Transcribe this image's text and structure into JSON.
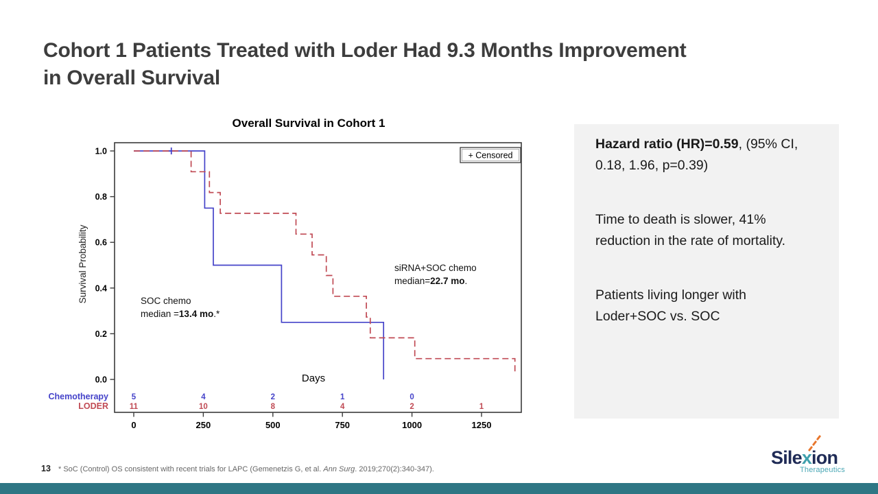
{
  "slide": {
    "title_lines": [
      "Cohort 1 Patients Treated with Loder Had 9.3 Months Improvement",
      "in Overall Survival"
    ],
    "page_number": "13",
    "footnote": {
      "pre": "* SoC (Control) OS consistent with recent trials for LAPC (Gemenetzis G, et al. ",
      "italic": "Ann Surg",
      "post": ". 2019;270(2):340-347)."
    },
    "logo": {
      "brand_pre": "Sile",
      "brand_x": "x",
      "brand_post": "ion",
      "sub": "Therapeutics"
    },
    "accent_teal": "#2e7684"
  },
  "panel": {
    "p1_bold": "Hazard ratio (HR)=0.59",
    "p1_rest": ", (95% CI, 0.18, 1.96, p=0.39)",
    "p2": "Time to death is slower, 41% reduction in the rate of mortality.",
    "p3": "Patients living longer with Loder+SOC vs. SOC"
  },
  "chart_data": {
    "type": "line",
    "subtype": "kaplan-meier-step",
    "title": "Overall Survival in Cohort 1",
    "xlabel": "Days",
    "ylabel": "Survival Probability",
    "xlim": [
      0,
      1400
    ],
    "ylim": [
      0,
      1.0
    ],
    "xticks": [
      0,
      250,
      500,
      750,
      1000,
      1250
    ],
    "yticks": [
      0.0,
      0.2,
      0.4,
      0.6,
      0.8,
      1.0
    ],
    "grid": false,
    "legend": {
      "label": "+ Censored",
      "position": "top-right"
    },
    "series": [
      {
        "name": "Chemotherapy",
        "display_label": "SOC chemo",
        "median_prefix": "median =",
        "median_bold": "13.4 mo",
        "median_suffix": ".*",
        "color": "#4543c9",
        "line_style": "solid",
        "steps": [
          [
            0,
            1.0
          ],
          [
            255,
            1.0
          ],
          [
            255,
            0.75
          ],
          [
            286,
            0.75
          ],
          [
            286,
            0.5
          ],
          [
            531,
            0.5
          ],
          [
            531,
            0.25
          ],
          [
            898,
            0.25
          ],
          [
            898,
            0.0
          ]
        ],
        "censored_points": [
          [
            135,
            1.0
          ]
        ],
        "at_risk": [
          5,
          4,
          2,
          1,
          0
        ]
      },
      {
        "name": "LODER",
        "display_label": "siRNA+SOC chemo",
        "median_prefix": "median=",
        "median_bold": "22.7 mo",
        "median_suffix": ".",
        "color": "#c04a54",
        "line_style": "dashed",
        "steps": [
          [
            0,
            1.0
          ],
          [
            206,
            1.0
          ],
          [
            206,
            0.909
          ],
          [
            272,
            0.909
          ],
          [
            272,
            0.818
          ],
          [
            311,
            0.818
          ],
          [
            311,
            0.727
          ],
          [
            583,
            0.727
          ],
          [
            583,
            0.636
          ],
          [
            641,
            0.636
          ],
          [
            641,
            0.545
          ],
          [
            692,
            0.545
          ],
          [
            692,
            0.455
          ],
          [
            716,
            0.455
          ],
          [
            716,
            0.364
          ],
          [
            836,
            0.364
          ],
          [
            836,
            0.273
          ],
          [
            850,
            0.273
          ],
          [
            850,
            0.182
          ],
          [
            1010,
            0.182
          ],
          [
            1010,
            0.091
          ],
          [
            1370,
            0.091
          ],
          [
            1370,
            0.02
          ]
        ],
        "censored_points": [],
        "at_risk": [
          11,
          10,
          8,
          4,
          2,
          1
        ]
      }
    ],
    "at_risk_days": [
      0,
      250,
      500,
      750,
      1000,
      1250
    ]
  }
}
